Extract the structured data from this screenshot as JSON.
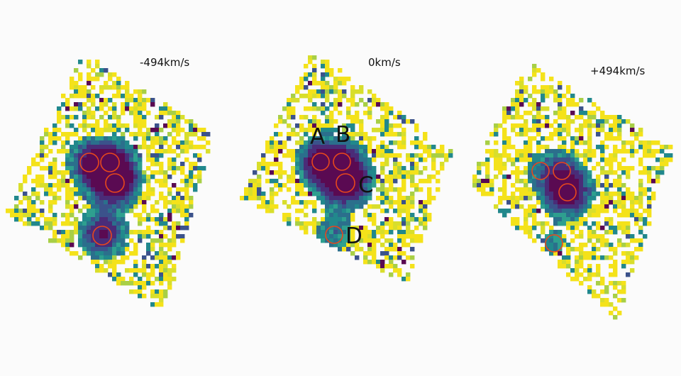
{
  "panels": [
    {
      "id": "left",
      "velocity_label": "-494km/s",
      "circles": [
        {
          "labelled": false,
          "filled": false
        },
        {
          "labelled": false,
          "filled": true
        },
        {
          "labelled": false,
          "filled": true
        },
        {
          "labelled": false,
          "filled": true
        }
      ]
    },
    {
      "id": "middle",
      "velocity_label": "0km/s",
      "circles": [
        {
          "label": "A",
          "filled": true
        },
        {
          "label": "B",
          "filled": false
        },
        {
          "label": "C",
          "filled": true
        },
        {
          "label": "D",
          "filled": false
        }
      ]
    },
    {
      "id": "right",
      "velocity_label": "+494km/s",
      "circles": [
        {
          "labelled": false,
          "filled": false
        },
        {
          "labelled": false,
          "filled": false
        },
        {
          "labelled": false,
          "filled": true
        },
        {
          "labelled": false,
          "filled": false
        }
      ]
    }
  ],
  "colors": {
    "background": "#fbfbfb",
    "circle_stroke": "#e8481c",
    "colormap": [
      "#f4e21a",
      "#d8de2c",
      "#a8cf46",
      "#2e9f8f",
      "#21888c",
      "#2b6f8c",
      "#3b528b",
      "#4a2c78",
      "#5a0a52"
    ]
  }
}
